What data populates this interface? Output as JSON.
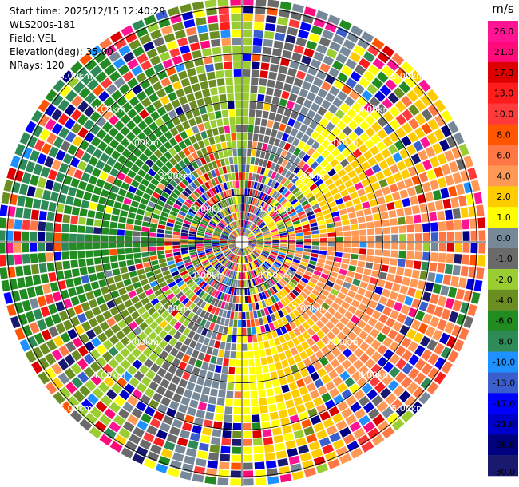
{
  "meta": {
    "start_time": "Start time: 2025/12/15 12:40:29",
    "instrument": "WLS200s-181",
    "field": "Field: VEL",
    "elevation": "Elevation(deg): 35.00",
    "nrays": "NRays: 120"
  },
  "chart_data": {
    "type": "heatmap",
    "projection": "polar-ppi",
    "field": "VEL",
    "units": "m/s",
    "nrays": 120,
    "range_km": [
      0,
      5.2
    ],
    "range_rings_km": [
      1,
      2,
      3,
      4,
      5
    ],
    "ring_labels": [
      "1.00km",
      "2.00km",
      "3.00km",
      "4.00km",
      "5.00km"
    ],
    "colorbar": {
      "title": "m/s",
      "vmin": -30,
      "vmax": 30,
      "tick_labels": [
        "26.0",
        "21.0",
        "17.0",
        "13.0",
        "10.0",
        "8.0",
        "6.0",
        "4.0",
        "2.0",
        "1.0",
        "0.0",
        "-1.0",
        "-2.0",
        "-4.0",
        "-6.0",
        "-8.0",
        "-10.0",
        "-13.0",
        "-17.0",
        "-21.0",
        "-26.0",
        "-30.0"
      ],
      "colors": [
        "#ff1493",
        "#ff0a7a",
        "#dd0000",
        "#ff1c1c",
        "#ff3a3a",
        "#ff5500",
        "#ff7744",
        "#ff9955",
        "#ffcc00",
        "#ffff00",
        "#778899",
        "#6a6a6a",
        "#9acd32",
        "#6b8e23",
        "#228b22",
        "#2e8b57",
        "#1e90ff",
        "#3a5fcd",
        "#0000ff",
        "#0000cd",
        "#000080",
        "#191970"
      ]
    }
  }
}
